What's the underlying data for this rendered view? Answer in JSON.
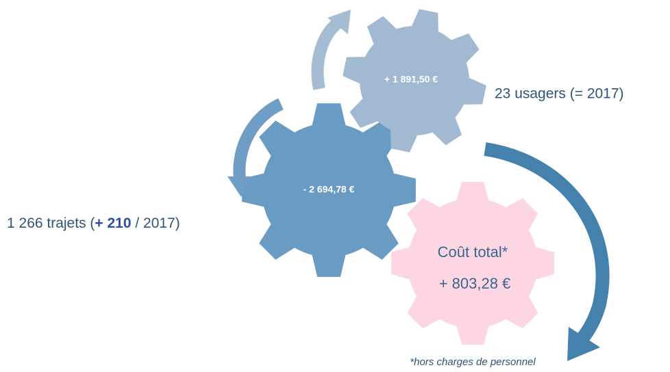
{
  "nodes": [
    {
      "label": "+ 1 891,50 €",
      "caption": "23 usagers (= 2017)"
    },
    {
      "label": "- 2 694,78 €",
      "caption_parts": [
        "1 266 trajets (",
        "+ 210",
        " / 2017)"
      ]
    },
    {
      "label_lines": [
        "Coût total*",
        "+ 803,28 €"
      ]
    }
  ],
  "footnote": "*hors charges de personnel"
}
